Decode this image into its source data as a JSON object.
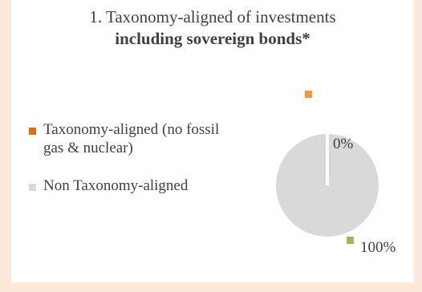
{
  "chart_data": {
    "type": "pie",
    "title": "1. Taxonomy-aligned of investments",
    "subtitle": "including sovereign bonds*",
    "categories": [
      "Taxonomy-aligned (no fossil gas & nuclear)",
      "Non Taxonomy-aligned"
    ],
    "values": [
      0,
      100
    ],
    "data_labels": [
      "0%",
      "100%"
    ],
    "legend_position": "left",
    "colors": {
      "taxonomy_aligned": "#e36c09",
      "non_taxonomy_aligned": "#d9d9d9",
      "label_marker_orange": "#f79646",
      "label_marker_green": "#9bbb59",
      "background": "#fde9d9"
    }
  },
  "legend": {
    "items": [
      {
        "label": "Taxonomy-aligned (no fossil gas & nuclear)"
      },
      {
        "label": "Non Taxonomy-aligned"
      }
    ]
  }
}
